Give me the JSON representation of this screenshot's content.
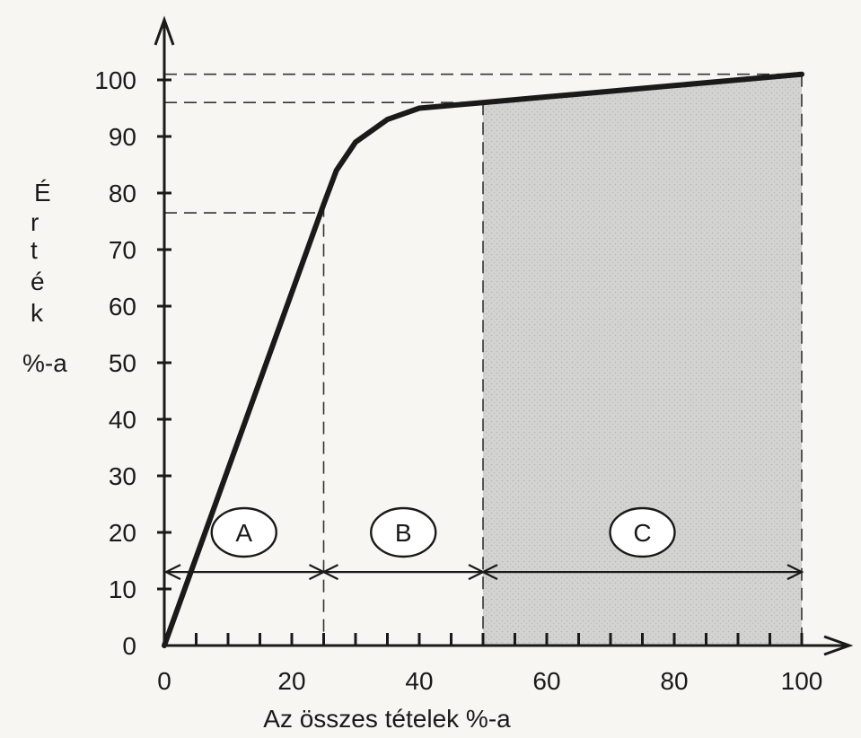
{
  "chart_data": {
    "type": "line",
    "xlabel": "Az összes tételek %-a",
    "ylabel_lines": [
      "É",
      "r",
      "t",
      "é",
      "k",
      "%-a"
    ],
    "x_ticks": [
      0,
      20,
      40,
      60,
      80,
      100
    ],
    "y_ticks": [
      0,
      10,
      20,
      30,
      40,
      50,
      60,
      70,
      80,
      90,
      100
    ],
    "xlim": [
      0,
      100
    ],
    "ylim": [
      0,
      100
    ],
    "series": [
      {
        "x": [
          0,
          25,
          27,
          30,
          35,
          40,
          45,
          50,
          60,
          70,
          80,
          90,
          100
        ],
        "y": [
          0,
          78,
          84,
          89,
          93,
          95,
          95.5,
          96,
          97,
          98,
          99,
          100,
          101
        ]
      }
    ],
    "guides": {
      "horizontal": [
        101,
        96,
        76.5
      ],
      "vertical": [
        25,
        50,
        100
      ]
    },
    "shaded_region": {
      "x_from": 50,
      "x_to": 100,
      "color": "#cfcfcf"
    },
    "zones": [
      {
        "label": "A",
        "from": 0,
        "to": 25
      },
      {
        "label": "B",
        "from": 25,
        "to": 50
      },
      {
        "label": "C",
        "from": 50,
        "to": 100
      }
    ],
    "zone_arrow_y": 13
  }
}
